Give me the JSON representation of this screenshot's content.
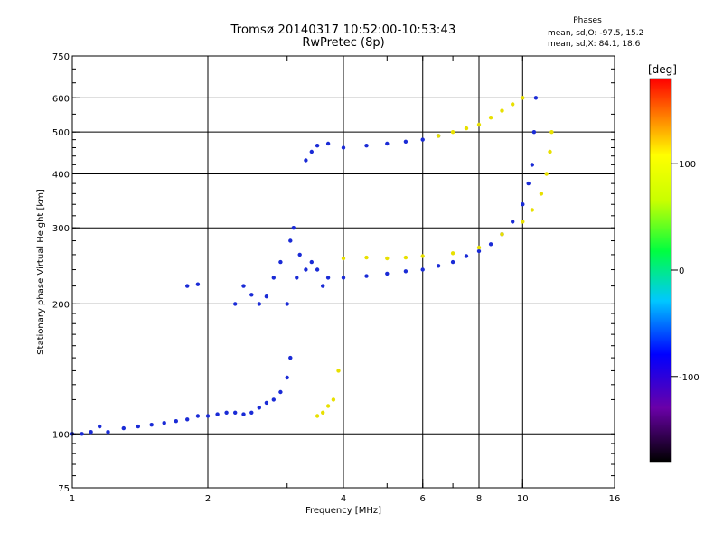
{
  "header": {
    "title_line1": "Tromsø 20140317 10:52:00-10:53:43",
    "title_line2": "RwPretec (8p)",
    "phases_title": "Phases",
    "phases_o": "mean, sd,O: -97.5, 15.2",
    "phases_x": "mean, sd,X: 84.1, 18.6"
  },
  "colorbar": {
    "unit": "[deg]",
    "range": [
      -180,
      180
    ],
    "ticks": [
      {
        "value": 100,
        "label": "100"
      },
      {
        "value": 0,
        "label": "0"
      },
      {
        "value": -100,
        "label": "-100"
      }
    ]
  },
  "chart_data": {
    "type": "scatter",
    "xlabel": "Frequency [MHz]",
    "ylabel": "Stationary phase Virtual Height [km]",
    "xscale": "log",
    "yscale": "log",
    "xlim": [
      1,
      16
    ],
    "ylim": [
      75,
      750
    ],
    "xticks": [
      {
        "value": 1,
        "label": "1"
      },
      {
        "value": 2,
        "label": "2"
      },
      {
        "value": 4,
        "label": "4"
      },
      {
        "value": 6,
        "label": "6"
      },
      {
        "value": 8,
        "label": "8"
      },
      {
        "value": 10,
        "label": "10"
      },
      {
        "value": 16,
        "label": "16"
      }
    ],
    "yticks": [
      {
        "value": 75,
        "label": "75"
      },
      {
        "value": 100,
        "label": "100"
      },
      {
        "value": 200,
        "label": "200"
      },
      {
        "value": 300,
        "label": "300"
      },
      {
        "value": 400,
        "label": "400"
      },
      {
        "value": 500,
        "label": "500"
      },
      {
        "value": 600,
        "label": "600"
      },
      {
        "value": 750,
        "label": "750"
      }
    ],
    "x_gridlines": [
      2,
      4,
      6,
      8,
      10
    ],
    "y_gridlines": [
      100,
      200,
      300,
      400,
      500,
      600
    ],
    "grid": true,
    "colorscale": "rainbow (black-purple-blue-cyan-green-yellow-red)",
    "series": [
      {
        "name": "",
        "phase": -100,
        "points": [
          [
            1.0,
            100
          ],
          [
            1.05,
            100
          ],
          [
            1.1,
            101
          ],
          [
            1.15,
            104
          ],
          [
            1.2,
            101
          ],
          [
            1.3,
            103
          ],
          [
            1.4,
            104
          ],
          [
            1.5,
            105
          ],
          [
            1.6,
            106
          ],
          [
            1.7,
            107
          ],
          [
            1.8,
            108
          ],
          [
            1.9,
            110
          ],
          [
            2.0,
            110
          ],
          [
            2.1,
            111
          ],
          [
            2.2,
            112
          ],
          [
            2.3,
            112
          ],
          [
            2.4,
            111
          ],
          [
            2.5,
            112
          ],
          [
            2.6,
            115
          ],
          [
            2.7,
            118
          ],
          [
            2.8,
            120
          ],
          [
            2.9,
            125
          ],
          [
            3.0,
            135
          ],
          [
            3.05,
            150
          ]
        ]
      },
      {
        "name": "",
        "phase": -95,
        "points": [
          [
            1.8,
            220
          ],
          [
            1.9,
            222
          ],
          [
            2.3,
            200
          ],
          [
            2.4,
            220
          ],
          [
            2.5,
            210
          ],
          [
            2.6,
            200
          ],
          [
            2.7,
            208
          ],
          [
            2.8,
            230
          ],
          [
            2.9,
            250
          ],
          [
            3.0,
            200
          ],
          [
            3.05,
            280
          ],
          [
            3.1,
            300
          ],
          [
            3.15,
            230
          ],
          [
            3.2,
            260
          ],
          [
            3.3,
            240
          ],
          [
            3.4,
            250
          ],
          [
            3.5,
            240
          ],
          [
            3.6,
            220
          ],
          [
            3.7,
            230
          ],
          [
            4.0,
            230
          ],
          [
            4.5,
            232
          ],
          [
            5.0,
            235
          ],
          [
            5.5,
            238
          ],
          [
            6.0,
            240
          ],
          [
            6.5,
            245
          ],
          [
            7.0,
            250
          ],
          [
            7.5,
            258
          ],
          [
            8.0,
            265
          ],
          [
            8.5,
            275
          ],
          [
            9.0,
            290
          ],
          [
            9.5,
            310
          ],
          [
            10.0,
            340
          ],
          [
            10.3,
            380
          ],
          [
            10.5,
            420
          ],
          [
            10.6,
            500
          ],
          [
            10.7,
            600
          ]
        ]
      },
      {
        "name": "",
        "phase": 100,
        "points": [
          [
            3.5,
            110
          ],
          [
            3.6,
            112
          ],
          [
            3.7,
            116
          ],
          [
            3.8,
            120
          ],
          [
            3.9,
            140
          ],
          [
            4.0,
            255
          ],
          [
            4.5,
            256
          ],
          [
            5.0,
            255
          ],
          [
            5.5,
            256
          ],
          [
            6.0,
            258
          ],
          [
            7.0,
            262
          ],
          [
            8.0,
            270
          ],
          [
            9.0,
            290
          ],
          [
            10.0,
            310
          ],
          [
            10.5,
            330
          ],
          [
            11.0,
            360
          ],
          [
            11.3,
            400
          ],
          [
            11.5,
            450
          ],
          [
            11.6,
            500
          ]
        ]
      },
      {
        "name": "",
        "phase": -100,
        "points": [
          [
            3.3,
            430
          ],
          [
            3.4,
            450
          ],
          [
            3.5,
            465
          ],
          [
            3.7,
            470
          ],
          [
            4.0,
            460
          ],
          [
            4.5,
            465
          ],
          [
            5.0,
            470
          ],
          [
            5.5,
            475
          ],
          [
            6.0,
            480
          ],
          [
            6.5,
            490
          ]
        ]
      },
      {
        "name": "",
        "phase": 100,
        "points": [
          [
            6.5,
            490
          ],
          [
            7.0,
            500
          ],
          [
            7.5,
            510
          ],
          [
            8.0,
            520
          ],
          [
            8.5,
            540
          ],
          [
            9.0,
            560
          ],
          [
            9.5,
            580
          ],
          [
            10.0,
            600
          ]
        ]
      }
    ]
  }
}
